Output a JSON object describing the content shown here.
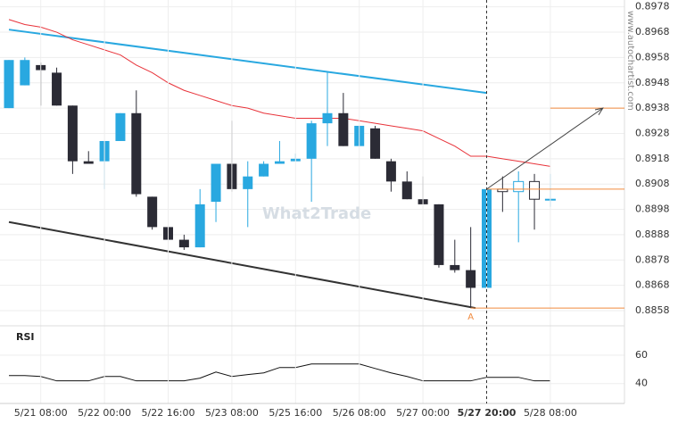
{
  "chart_data": [
    {
      "type": "candlestick",
      "categories": [
        null,
        null,
        "5/21 08:00",
        null,
        null,
        null,
        "5/22 00:00",
        null,
        null,
        null,
        "5/22 16:00",
        null,
        null,
        null,
        "5/23 08:00",
        null,
        null,
        null,
        "5/25 16:00",
        null,
        null,
        null,
        "5/26 08:00",
        null,
        null,
        null,
        "5/27 00:00",
        null,
        null,
        null,
        "5/27 20:00",
        null,
        null,
        null,
        "5/28 08:00"
      ],
      "open": [
        0.8938,
        0.8947,
        0.8955,
        0.8952,
        0.8939,
        0.8917,
        0.8917,
        0.8925,
        0.8936,
        0.8903,
        0.8891,
        0.8886,
        0.8883,
        0.8901,
        0.8916,
        0.8906,
        0.8911,
        0.8916,
        0.8917,
        0.8918,
        0.8932,
        0.8936,
        0.8923,
        0.893,
        0.8917,
        0.8909,
        0.8902,
        0.89,
        0.8876,
        0.8874,
        0.8867,
        0.8906,
        0.8905,
        0.8909,
        0.8902
      ],
      "high": [
        0.8957,
        0.8958,
        0.8956,
        0.8954,
        0.8939,
        0.8921,
        0.8925,
        0.8936,
        0.8945,
        0.8903,
        0.8891,
        0.8888,
        0.8906,
        0.8916,
        0.8933,
        0.8917,
        0.8917,
        0.8925,
        0.892,
        0.8933,
        0.8952,
        0.8944,
        0.8931,
        0.8931,
        0.8918,
        0.8913,
        0.8911,
        0.89,
        0.8886,
        0.8891,
        0.8906,
        0.8911,
        0.8913,
        0.8912,
        0.8912
      ],
      "low": [
        0.8938,
        0.8947,
        0.8939,
        0.8939,
        0.8912,
        0.8916,
        0.8906,
        0.8925,
        0.8903,
        0.889,
        0.8884,
        0.8882,
        0.8883,
        0.8893,
        0.8905,
        0.8891,
        0.8911,
        0.8916,
        0.8917,
        0.8901,
        0.8923,
        0.8923,
        0.8923,
        0.8918,
        0.8905,
        0.8902,
        0.89,
        0.8875,
        0.8873,
        0.8859,
        0.8867,
        0.8897,
        0.8885,
        0.889,
        0.8899
      ],
      "close": [
        0.8957,
        0.8957,
        0.8953,
        0.8939,
        0.8917,
        0.8916,
        0.8925,
        0.8936,
        0.8904,
        0.8891,
        0.8886,
        0.8883,
        0.89,
        0.8916,
        0.8906,
        0.8911,
        0.8916,
        0.8917,
        0.8918,
        0.8932,
        0.8936,
        0.8923,
        0.8931,
        0.8918,
        0.8909,
        0.8902,
        0.89,
        0.8876,
        0.8874,
        0.8867,
        0.8906,
        0.8905,
        0.8909,
        0.8902,
        0.8902
      ],
      "ma_values": [
        0.8973,
        0.8971,
        0.897,
        0.8968,
        0.8965,
        0.8963,
        0.8961,
        0.8959,
        0.8955,
        0.8952,
        0.8948,
        0.8945,
        0.8943,
        0.8941,
        0.8939,
        0.8938,
        0.8936,
        0.8935,
        0.8934,
        0.8934,
        0.8934,
        0.8934,
        0.8933,
        0.8932,
        0.8931,
        0.893,
        0.8929,
        0.8926,
        0.8923,
        0.8919,
        0.8919,
        0.8918,
        0.8917,
        0.8916,
        0.8915
      ],
      "ma_color": "#e8333a",
      "up_color": "#29a8e0",
      "down_color": "#2b2b35",
      "hollow_from": 31,
      "highlight_category": 30,
      "ylim": [
        0.8852,
        0.898
      ],
      "yticks": [
        0.8978,
        0.8968,
        0.8958,
        0.8948,
        0.8938,
        0.8928,
        0.8918,
        0.8908,
        0.8898,
        0.8888,
        0.8878,
        0.8868,
        0.8858
      ],
      "grid": true,
      "trend_lines": [
        {
          "x": [
            0,
            30
          ],
          "y": [
            0.8969,
            0.8944
          ],
          "color": "#29a8e0"
        },
        {
          "x": [
            0,
            29.3
          ],
          "y": [
            0.8893,
            0.8859
          ],
          "color": "#333333"
        }
      ],
      "levels": [
        {
          "y": 0.8938,
          "from": 34
        },
        {
          "y": 0.8906,
          "from": 30
        },
        {
          "y": 0.8859,
          "from": 29,
          "label": "A"
        }
      ],
      "level_color": "#f08a3e",
      "arrow": {
        "x": [
          30,
          37.3
        ],
        "y": [
          0.8906,
          0.8938
        ]
      },
      "watermark": "What2Trade",
      "site": "www.autochartist.com"
    },
    {
      "type": "line",
      "title": "RSI",
      "values": [
        45.6,
        45.6,
        45,
        41.9,
        41.9,
        41.9,
        45,
        45,
        41.9,
        41.9,
        41.9,
        41.9,
        43.8,
        48.1,
        45,
        46.3,
        47.5,
        51.3,
        51.3,
        53.8,
        53.8,
        53.8,
        53.8,
        50.6,
        47.5,
        45,
        41.9,
        41.9,
        41.9,
        41.9,
        44.4,
        44.4,
        44.4,
        41.9,
        41.9
      ],
      "color": "#111111",
      "ylim": [
        26,
        80
      ],
      "yticks": [
        60,
        40
      ],
      "grid": true
    }
  ]
}
